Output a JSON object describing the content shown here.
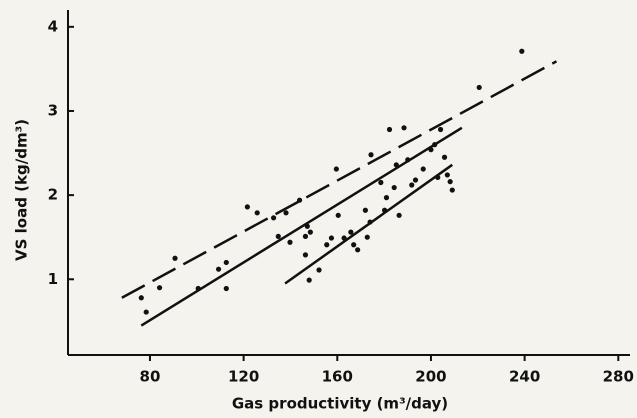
{
  "chart_data": {
    "type": "scatter",
    "x_label": "Gas productivity  (m³/day)",
    "y_label": "VS load   (kg/dm³)",
    "xlim": [
      45,
      285
    ],
    "ylim": [
      0.1,
      4.2
    ],
    "xticks": [
      80,
      120,
      160,
      200,
      240,
      280
    ],
    "yticks": [
      1,
      2,
      3,
      4
    ],
    "color": "#111111",
    "x": [
      76.3,
      78.4,
      84.1,
      90.7,
      100.6,
      109.3,
      112.6,
      112.6,
      121.6,
      125.8,
      132.8,
      134.8,
      138.1,
      139.8,
      143.9,
      146.4,
      147.2,
      148.5,
      146.4,
      148.0,
      152.2,
      155.5,
      157.5,
      159.6,
      160.4,
      162.9,
      165.8,
      167.0,
      168.7,
      172.0,
      172.8,
      174.0,
      174.4,
      178.6,
      180.2,
      181.0,
      182.3,
      184.3,
      185.2,
      186.4,
      188.5,
      190.1,
      191.8,
      193.4,
      196.7,
      200.0,
      201.6,
      202.9,
      204.1,
      205.8,
      207.0,
      208.2,
      209.1,
      220.6,
      238.8
    ],
    "values": [
      0.78,
      0.61,
      0.9,
      1.25,
      0.89,
      1.12,
      1.2,
      0.89,
      1.86,
      1.79,
      1.73,
      1.51,
      1.79,
      1.44,
      1.94,
      1.51,
      1.63,
      1.56,
      1.29,
      0.99,
      1.11,
      1.41,
      1.49,
      2.31,
      1.76,
      1.49,
      1.56,
      1.41,
      1.35,
      1.82,
      1.5,
      1.68,
      2.48,
      2.15,
      1.82,
      1.97,
      2.78,
      2.09,
      2.36,
      1.76,
      2.8,
      2.42,
      2.12,
      2.18,
      2.31,
      2.54,
      2.6,
      2.21,
      2.78,
      2.45,
      2.24,
      2.16,
      2.06,
      3.28,
      3.71
    ],
    "lines": [
      {
        "x": [
          68.0,
          253.6
        ],
        "values": [
          0.78,
          3.59
        ],
        "dashed": true
      },
      {
        "x": [
          76.3,
          213.2
        ],
        "values": [
          0.45,
          2.8
        ],
        "dashed": false
      },
      {
        "x": [
          137.7,
          209.1
        ],
        "values": [
          0.95,
          2.36
        ],
        "dashed": false
      }
    ]
  }
}
